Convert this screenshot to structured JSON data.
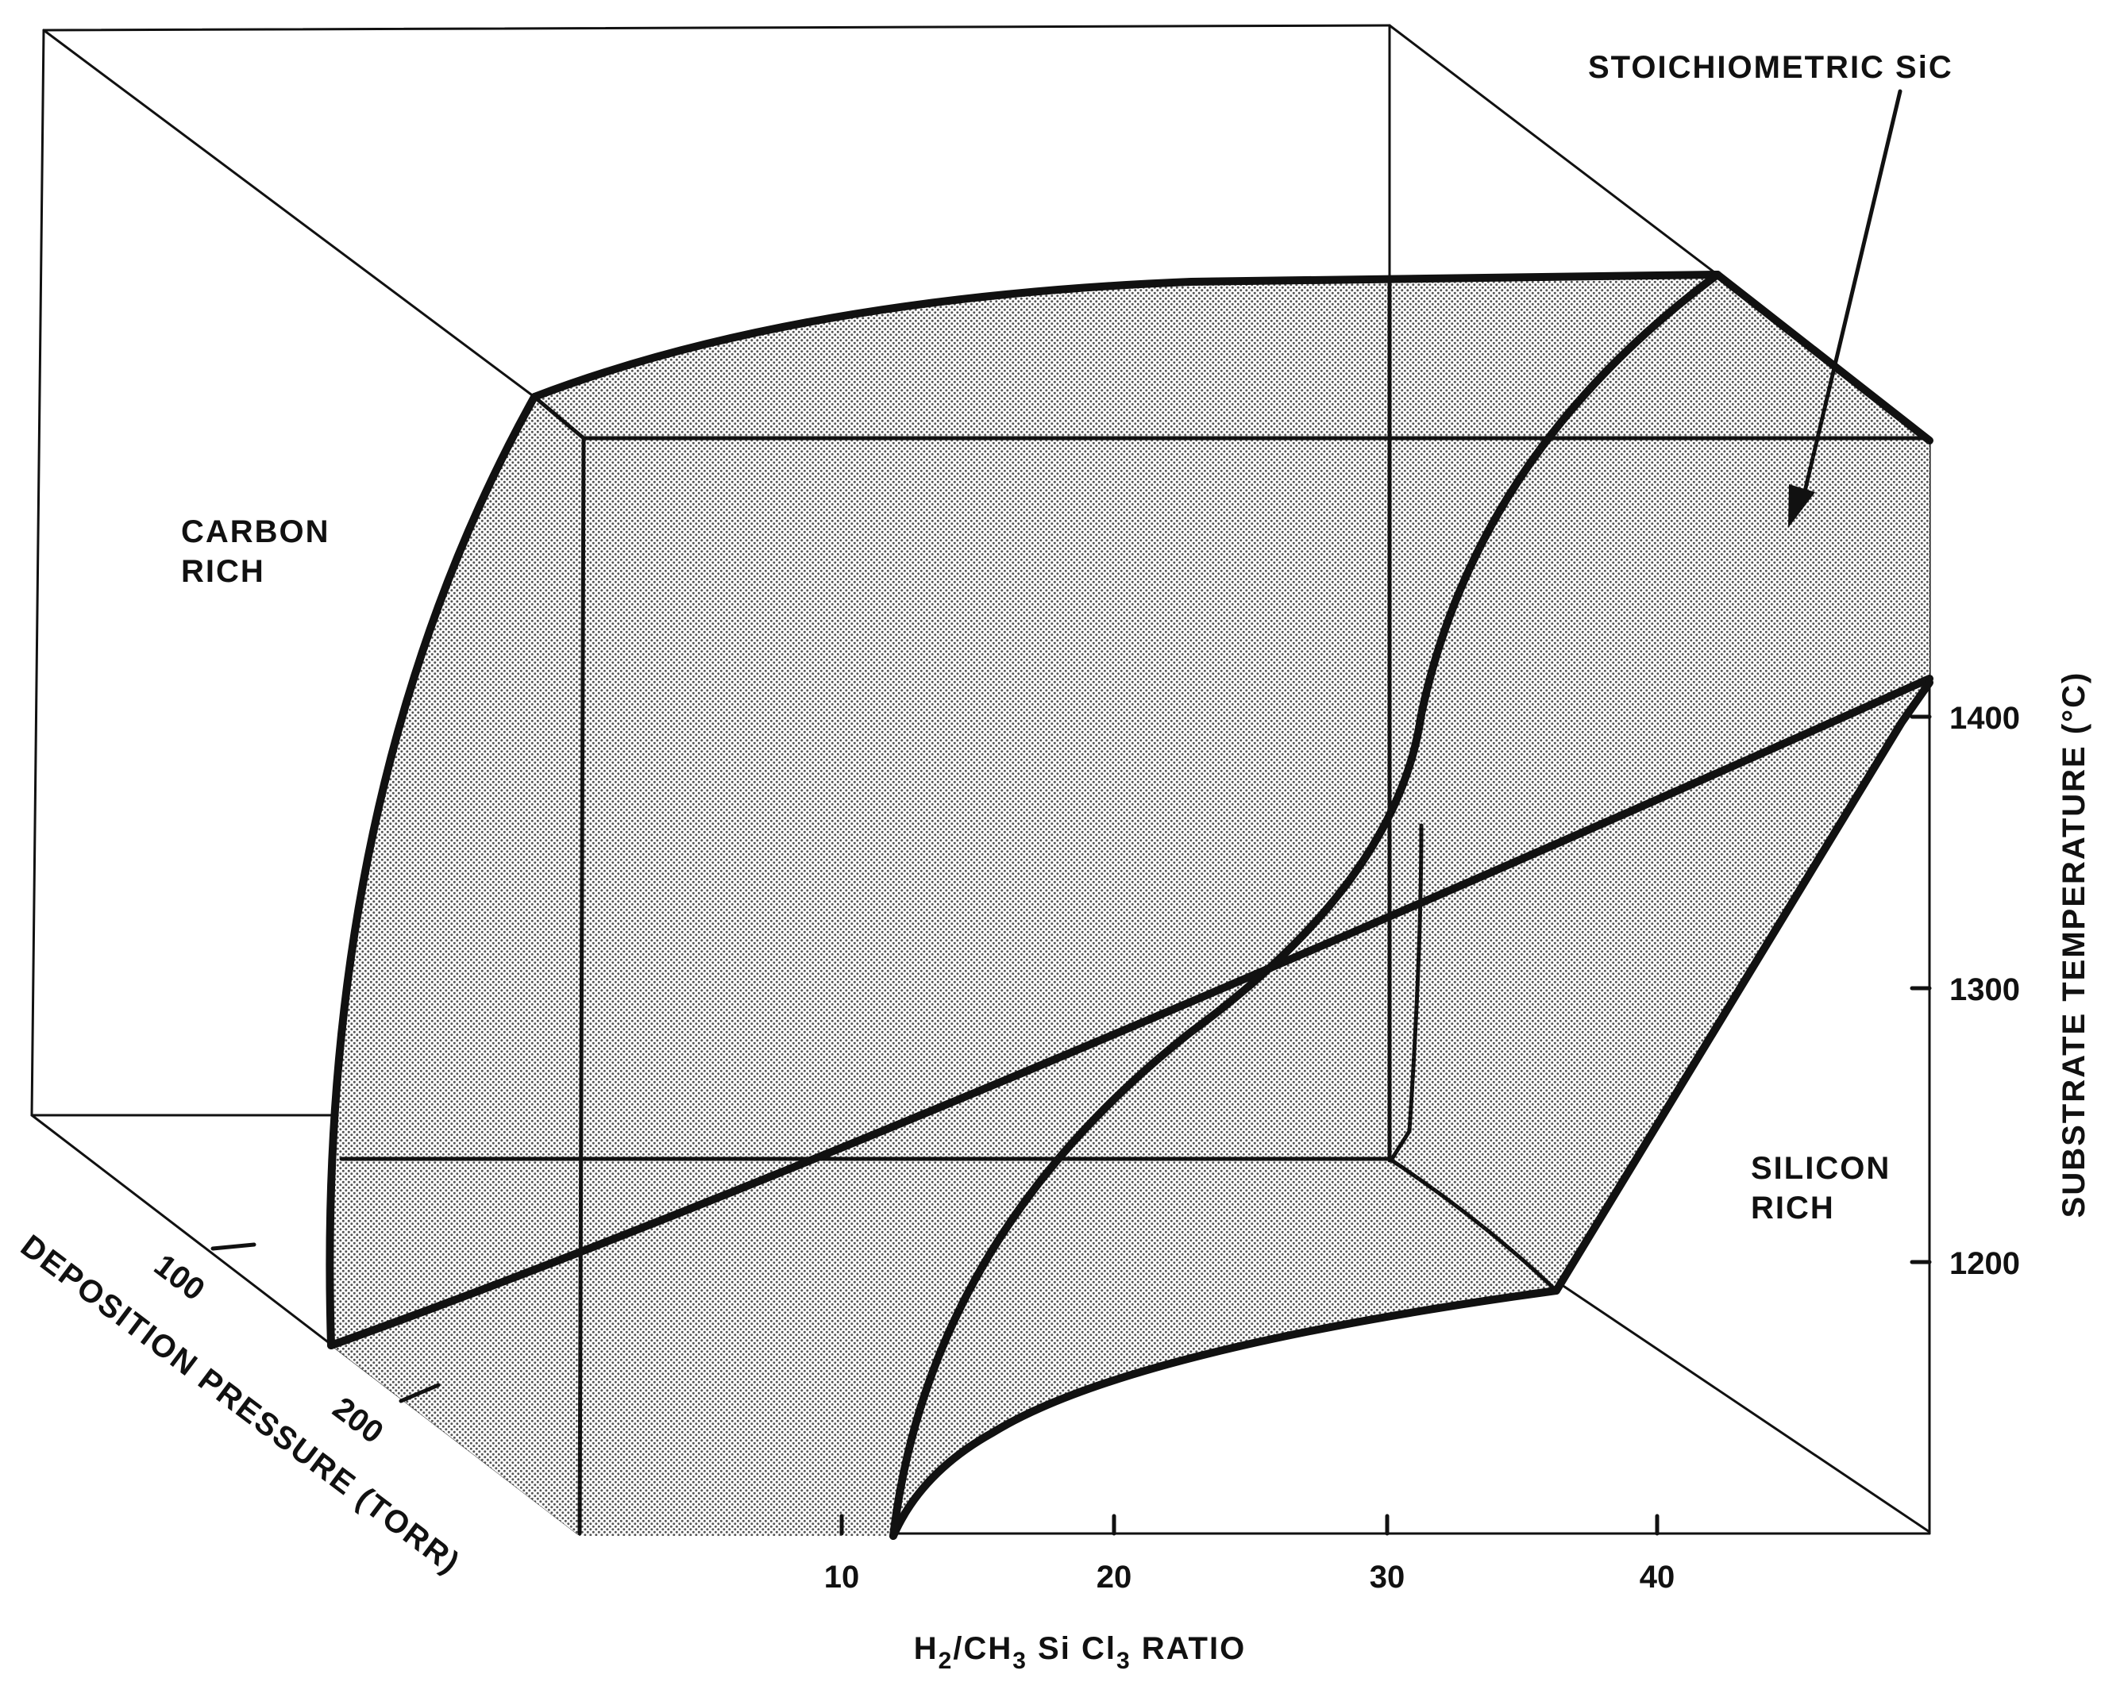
{
  "labels": {
    "stoichiometric": "STOICHIOMETRIC SiC",
    "carbon_rich_1": "CARBON",
    "carbon_rich_2": "RICH",
    "silicon_rich_1": "SILICON",
    "silicon_rich_2": "RICH"
  },
  "axes": {
    "x": {
      "label_main_1": "H",
      "label_sub_1": "2",
      "label_main_2": "/CH",
      "label_sub_2": "3",
      "label_main_3": " Si Cl",
      "label_sub_3": "3",
      "label_main_4": " RATIO",
      "ticks": [
        "10",
        "20",
        "30",
        "40"
      ]
    },
    "y": {
      "label": "SUBSTRATE TEMPERATURE (°C)",
      "ticks": [
        "1200",
        "1300",
        "1400"
      ]
    },
    "z": {
      "label": "DEPOSITION PRESSURE (TORR)",
      "ticks": [
        "100",
        "200"
      ]
    }
  },
  "colors": {
    "ink": "#111111",
    "stipple": "#9a9a9a",
    "background": "#ffffff"
  }
}
